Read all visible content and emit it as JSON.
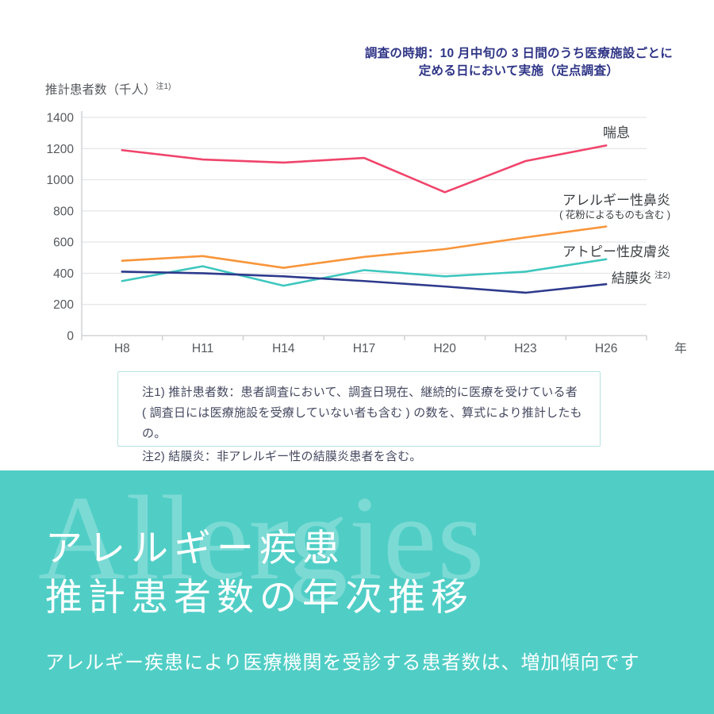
{
  "survey_period_note": {
    "line1": "調査の時期：10 月中旬の 3 日間のうち医療施設ごとに",
    "line2": "定める日において実施（定点調査）"
  },
  "chart_data": {
    "type": "line",
    "y_axis_title": "推計患者数（千人）",
    "y_axis_title_sup": "注1)",
    "x_axis_unit": "年",
    "categories": [
      "H8",
      "H11",
      "H14",
      "H17",
      "H20",
      "H23",
      "H26"
    ],
    "ylim": [
      0,
      1400
    ],
    "ytick_interval": 200,
    "grid": true,
    "legend_position": "right-of-lines",
    "series": [
      {
        "name": "喘息",
        "color": "#f0446b",
        "values": [
          1190,
          1130,
          1110,
          1140,
          920,
          1120,
          1220
        ]
      },
      {
        "name": "アレルギー性鼻炎",
        "name_sub": "( 花粉によるものも含む )",
        "color": "#f8953a",
        "values": [
          480,
          510,
          435,
          505,
          555,
          630,
          700
        ]
      },
      {
        "name": "アトピー性皮膚炎",
        "color": "#3ec7be",
        "values": [
          350,
          445,
          320,
          420,
          380,
          410,
          490
        ]
      },
      {
        "name": "結膜炎",
        "name_sup": "注2)",
        "color": "#2d3a8c",
        "values": [
          410,
          400,
          380,
          350,
          315,
          275,
          330
        ]
      }
    ]
  },
  "footnotes": {
    "note1_line1": "注1) 推計患者数：患者調査において、調査日現在、継続的に医療を受けている者",
    "note1_line2": "( 調査日には医療施設を受療していない者も含む ) の数を、算式により推計したもの。",
    "note2": "注2) 結膜炎：非アレルギー性の結膜炎患者を含む。"
  },
  "banner": {
    "watermark": "Allergies",
    "title_line1": "アレルギー疾患",
    "title_line2": "推計患者数の年次推移",
    "subtitle": "アレルギー疾患により医療機関を受診する患者数は、増加傾向です",
    "background_color": "#50cec6",
    "text_color": "#ffffff"
  }
}
